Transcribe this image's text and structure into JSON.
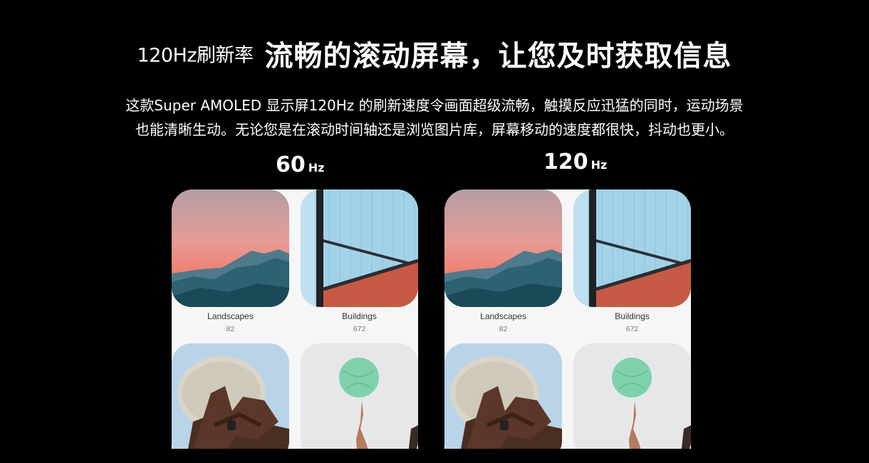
{
  "headline": {
    "prefix": "120Hz刷新率",
    "title": "流畅的滚动屏幕，让您及时获取信息"
  },
  "description": {
    "line1": "这款Super AMOLED 显示屏120Hz 的刷新速度令画面超级流畅，触摸反应迅猛的同时，运动场景",
    "line2": "也能清晰生动。无论您是在滚动时间轴还是浏览图片库，屏幕移动的速度都很快，抖动也更小。"
  },
  "comparison": [
    {
      "rate": "60",
      "unit": "Hz",
      "albums": [
        {
          "name": "Landscapes",
          "count": "82"
        },
        {
          "name": "Buildings",
          "count": "672"
        }
      ]
    },
    {
      "rate": "120",
      "unit": "Hz",
      "albums": [
        {
          "name": "Landscapes",
          "count": "82"
        },
        {
          "name": "Buildings",
          "count": "672"
        }
      ]
    }
  ],
  "colors": {
    "background": "#000000",
    "panel": "#f6f6f7",
    "sky_top": "#b9a1a4",
    "sky_bottom": "#f07e6e",
    "mountain": "#1d4f5c",
    "glass": "#9fcfe6",
    "brick": "#c65a44",
    "ball": "#7fd0ad"
  }
}
